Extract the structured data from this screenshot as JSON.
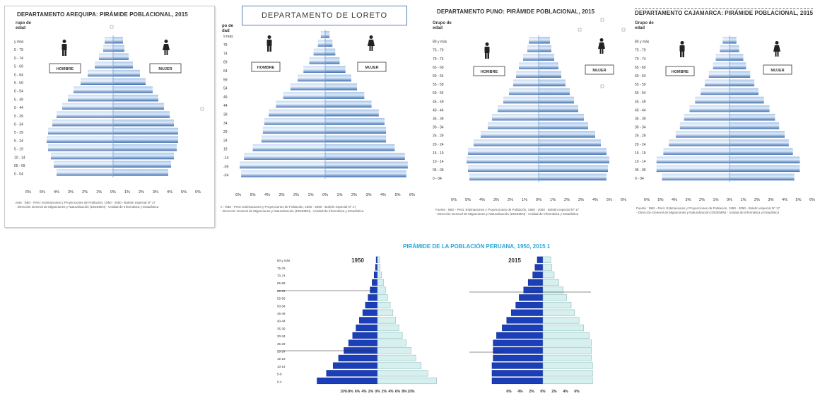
{
  "colors": {
    "male_dark": "#4f7ab8",
    "male_light": "#c8dcf2",
    "female_dark": "#3d6eb0",
    "female_light": "#a9c6ea",
    "peru_male_dark": "#1a3fb8",
    "peru_male_light": "#3f6be0",
    "peru_female_dark": "#7fb3b3",
    "peru_female_light": "#d5f0ee",
    "peru_title": "#2aa7d6"
  },
  "icons": {
    "male": "male-person-icon",
    "female": "female-person-icon"
  },
  "panels": [
    {
      "id": "arequipa",
      "title": "DEPARTAMENTO AREQUIPA: PIRÁMIDE POBLACIONAL, 2015",
      "ylabel": [
        "rupo de",
        "edad"
      ],
      "male_label": "HOMBRE",
      "female_label": "MUJER",
      "xticks": [
        "6%",
        "5%",
        "4%",
        "3%",
        "2%",
        "1%",
        "0%",
        "1%",
        "2%",
        "3%",
        "4%",
        "5%",
        "6%"
      ],
      "source": [
        "ente : INEI - Perú: Estimaciones y Proyecciones de Población, 1950 - 2050 - Boletín especial Nº 17",
        "- Dirección General de Migraciones y Naturalización (DIGEMIN) - Unidad de Informática y Estadística"
      ]
    },
    {
      "id": "loreto",
      "title": "DEPARTAMENTO  DE  LORETO",
      "ylabel": [
        "po de",
        "dad"
      ],
      "male_label": "HOMBRE",
      "female_label": "MUJER",
      "xticks": [
        "6%",
        "5%",
        "4%",
        "3%",
        "2%",
        "1%",
        "0%",
        "1%",
        "2%",
        "3%",
        "4%",
        "5%",
        "6%"
      ],
      "source": [
        "e : INEI - Perú: Estimaciones y Proyecciones de Población, 1950 - 2050 - Boletín especial Nº 17",
        "- Dirección General de Migraciones y Naturalización (DIGEMIN) - Unidad de Informática y Estadística"
      ]
    },
    {
      "id": "puno",
      "title": "DEPARTAMENTO PUNO: PIRÁMIDE POBLACIONAL, 2015",
      "ylabel": [
        "Grupo de",
        "edad"
      ],
      "male_label": "HOMBRE",
      "female_label": "MUJER",
      "xticks": [
        "6%",
        "5%",
        "4%",
        "3%",
        "2%",
        "1%",
        "0%",
        "1%",
        "2%",
        "3%",
        "4%",
        "5%",
        "6%"
      ],
      "source": [
        "Fuente : INEI - Perú: Estimaciones y Proyecciones de Población, 1950 - 2050 - Boletín especial Nº 17",
        "- Dirección General de Migraciones y Naturalización (DIGEMIN) - Unidad de Informática y Estadística"
      ]
    },
    {
      "id": "cajamarca",
      "title": "DEPARTAMENTO CAJAMARCA: PIRÁMIDE POBLACIONAL, 2015",
      "ylabel": [
        "Grupo de",
        "edad"
      ],
      "male_label": "HOMBRE",
      "female_label": "MUJER",
      "xticks": [
        "6%",
        "5%",
        "4%",
        "3%",
        "2%",
        "1%",
        "0%",
        "1%",
        "2%",
        "3%",
        "4%",
        "5%",
        "6%"
      ],
      "source": [
        "Fuente : INEI - Perú: Estimaciones y Proyecciones de Población, 1950 - 2050 - Boletín especial Nº 17",
        "- Dirección General de Migraciones y Naturalización (DIGEMIN) - Unidad de Informática y Estadística"
      ]
    },
    {
      "id": "peru",
      "title": "PIRÁMIDE DE LA POBLACIÓN PERUANA, 1950, 2015 1",
      "sub1": "1950",
      "sub2": "2015",
      "xticks1": [
        "10%",
        "8%",
        "6%",
        "4%",
        "2%",
        "0%",
        "2%",
        "4%",
        "6%",
        "8%",
        "10%"
      ],
      "xticks2": [
        "6%",
        "4%",
        "2%",
        "0%",
        "2%",
        "4%",
        "6%"
      ]
    }
  ],
  "chart_data": [
    {
      "type": "bar",
      "title": "DEPARTAMENTO AREQUIPA: PIRÁMIDE POBLACIONAL, 2015",
      "ylabel": "rupo de edad",
      "categories": [
        "0 - 04",
        "05 - 09",
        "10 - 14",
        "15 - 19",
        "20 - 24",
        "25 - 29",
        "30 - 34",
        "35 - 39",
        "40 - 44",
        "45 - 49",
        "50 - 54",
        "55 - 59",
        "60 - 64",
        "65 - 69",
        "70 - 74",
        "75 - 79",
        "80 y más"
      ],
      "category_labels": [
        "0 - 04",
        "05 - 09",
        "10 - 14",
        "5 - 19",
        "5 - 24",
        "5 - 29",
        "0 - 34",
        "5 - 39",
        "0 - 44",
        "5 - 49",
        "0 - 54",
        "5 - 59",
        "0 - 64",
        "5 - 69",
        "0 - 74",
        "5 - 79",
        "y más"
      ],
      "series": [
        {
          "name": "HOMBRE",
          "values": [
            4.0,
            4.2,
            4.4,
            4.6,
            4.7,
            4.6,
            4.3,
            4.0,
            3.6,
            3.2,
            2.8,
            2.3,
            1.8,
            1.3,
            1.0,
            0.7,
            0.6
          ]
        },
        {
          "name": "MUJER",
          "values": [
            3.9,
            4.1,
            4.3,
            4.5,
            4.6,
            4.6,
            4.3,
            4.0,
            3.6,
            3.2,
            2.8,
            2.3,
            1.9,
            1.4,
            1.1,
            0.8,
            0.7
          ]
        }
      ],
      "xlim": [
        -6,
        6
      ]
    },
    {
      "type": "bar",
      "title": "DEPARTAMENTO  DE  LORETO",
      "ylabel": "po de dad",
      "categories": [
        "0-04",
        "05-09",
        "10-14",
        "15-19",
        "20-24",
        "25-29",
        "30-34",
        "35-39",
        "40-44",
        "45-49",
        "50-54",
        "55-59",
        "60-64",
        "65-69",
        "70-74",
        "75-79",
        "80 y más"
      ],
      "category_labels": [
        "-04",
        "-09",
        "-14",
        "19",
        "24",
        "29",
        "34",
        "39",
        "44",
        "49",
        "54",
        "59",
        "64",
        "69",
        "74",
        "79",
        "9 más"
      ],
      "series": [
        {
          "name": "HOMBRE",
          "values": [
            5.8,
            5.9,
            5.6,
            5.0,
            4.4,
            4.3,
            4.2,
            3.9,
            3.4,
            2.9,
            2.4,
            1.9,
            1.5,
            1.1,
            0.8,
            0.5,
            0.3
          ]
        },
        {
          "name": "MUJER",
          "values": [
            5.6,
            5.7,
            5.5,
            4.8,
            4.2,
            4.2,
            4.1,
            3.7,
            3.2,
            2.7,
            2.2,
            1.8,
            1.4,
            1.0,
            0.7,
            0.5,
            0.3
          ]
        }
      ],
      "xlim": [
        -6,
        6
      ]
    },
    {
      "type": "bar",
      "title": "DEPARTAMENTO PUNO: PIRÁMIDE POBLACIONAL, 2015",
      "ylabel": "Grupo de edad",
      "categories": [
        "0 - 04",
        "05 - 09",
        "10 - 14",
        "15 - 19",
        "20 - 24",
        "25 - 29",
        "30 - 34",
        "35 - 39",
        "40 - 44",
        "45 - 49",
        "50 - 54",
        "55 - 59",
        "60 - 64",
        "65 - 69",
        "70 - 74",
        "75 - 79",
        "80 y más"
      ],
      "category_labels": [
        "0 - 04",
        "05 - 09",
        "10 - 14",
        "15 - 19",
        "20 - 24",
        "25 - 29",
        "30 - 34",
        "35 - 39",
        "40 - 44",
        "45 - 49",
        "50 - 54",
        "55 - 59",
        "60 - 64",
        "65 - 69",
        "70 - 74",
        "75 - 79",
        "80 y más"
      ],
      "series": [
        {
          "name": "HOMBRE",
          "values": [
            4.9,
            5.0,
            5.1,
            5.0,
            4.6,
            4.1,
            3.6,
            3.3,
            2.9,
            2.5,
            2.1,
            1.8,
            1.6,
            1.4,
            1.1,
            0.8,
            0.7
          ]
        },
        {
          "name": "MUJER",
          "values": [
            4.8,
            4.9,
            5.0,
            4.8,
            4.4,
            4.0,
            3.5,
            3.2,
            2.8,
            2.5,
            2.2,
            1.9,
            1.6,
            1.4,
            1.1,
            0.9,
            0.8
          ]
        }
      ],
      "xlim": [
        -6,
        6
      ]
    },
    {
      "type": "bar",
      "title": "DEPARTAMENTO CAJAMARCA: PIRÁMIDE POBLACIONAL, 2015",
      "ylabel": "Grupo de edad",
      "categories": [
        "0 - 04",
        "05 - 09",
        "10 - 14",
        "15 - 19",
        "20 - 24",
        "25 - 29",
        "30 - 34",
        "35 - 39",
        "40 - 44",
        "45 - 49",
        "50 - 54",
        "55 - 59",
        "60 - 64",
        "65 - 69",
        "70 - 74",
        "75 - 79",
        "80 y más"
      ],
      "category_labels": [
        "0 - 04",
        "05 - 09",
        "10 - 14",
        "15 - 19",
        "20 - 24",
        "25 - 29",
        "30 - 34",
        "35 - 39",
        "40 - 44",
        "45 - 49",
        "50 - 54",
        "55 - 59",
        "60 - 64",
        "65 - 69",
        "70 - 74",
        "75 - 79",
        "80 y más"
      ],
      "series": [
        {
          "name": "HOMBRE",
          "values": [
            4.9,
            5.3,
            5.3,
            4.8,
            4.4,
            3.9,
            3.6,
            3.3,
            2.9,
            2.5,
            2.1,
            1.8,
            1.5,
            1.2,
            1.0,
            0.7,
            0.5
          ]
        },
        {
          "name": "MUJER",
          "values": [
            4.7,
            5.1,
            5.1,
            4.6,
            4.3,
            4.0,
            3.6,
            3.3,
            2.9,
            2.5,
            2.1,
            1.8,
            1.5,
            1.2,
            1.0,
            0.7,
            0.5
          ]
        }
      ],
      "xlim": [
        -6,
        6
      ]
    },
    {
      "type": "bar",
      "title": "PIRÁMIDE DE LA POBLACIÓN PERUANA, 1950, 2015 1",
      "subtitle": "1950",
      "categories": [
        "0-4",
        "5-9",
        "10-14",
        "15-19",
        "20-24",
        "25-29",
        "30-34",
        "35-39",
        "40-44",
        "45-49",
        "50-54",
        "55-59",
        "60-64",
        "65-69",
        "70-74",
        "75-79",
        "80 y más"
      ],
      "category_labels": [
        "0-4",
        "5-9",
        "10-14",
        "15-19",
        "20-24",
        "25-29",
        "30-34",
        "35-39",
        "40-44",
        "45-49",
        "50-54",
        "55-59",
        "60-64",
        "65-69",
        "70-74",
        "75-79",
        "80 y más"
      ],
      "series": [
        {
          "values": [
            9.0,
            7.6,
            6.6,
            5.8,
            5.0,
            4.3,
            3.7,
            3.2,
            2.7,
            2.2,
            1.8,
            1.4,
            1.1,
            0.8,
            0.5,
            0.3,
            0.2
          ]
        },
        {
          "values": [
            8.8,
            7.5,
            6.5,
            5.7,
            5.0,
            4.3,
            3.7,
            3.2,
            2.7,
            2.3,
            1.9,
            1.5,
            1.2,
            0.9,
            0.6,
            0.4,
            0.3
          ]
        }
      ],
      "xlim": [
        -10,
        10
      ]
    },
    {
      "type": "bar",
      "subtitle": "2015",
      "categories": [
        "0-4",
        "5-9",
        "10-14",
        "15-19",
        "20-24",
        "25-29",
        "30-34",
        "35-39",
        "40-44",
        "45-49",
        "50-54",
        "55-59",
        "60-64",
        "65-69",
        "70-74",
        "75-79",
        "80 y más"
      ],
      "series": [
        {
          "values": [
            4.5,
            4.5,
            4.5,
            4.4,
            4.4,
            4.4,
            4.1,
            3.6,
            3.2,
            2.8,
            2.4,
            2.1,
            1.7,
            1.3,
            0.9,
            0.7,
            0.5
          ]
        },
        {
          "values": [
            4.4,
            4.4,
            4.4,
            4.3,
            4.3,
            4.3,
            4.1,
            3.6,
            3.2,
            2.8,
            2.5,
            2.1,
            1.8,
            1.4,
            1.0,
            0.8,
            0.7
          ]
        }
      ],
      "xlim": [
        -6,
        6
      ]
    }
  ]
}
